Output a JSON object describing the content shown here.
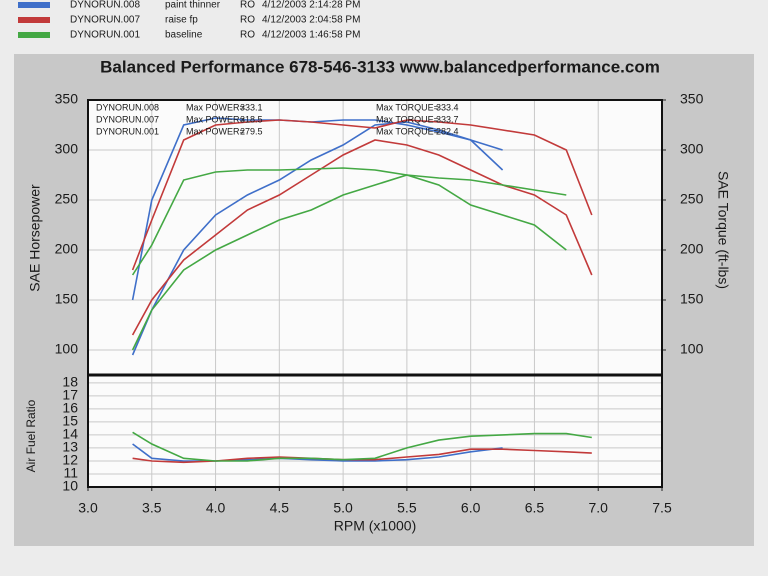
{
  "header": {
    "runs": [
      {
        "name": "DYNORUN.008",
        "desc": "paint thinner",
        "code": "RO",
        "date": "4/12/2003 2:14:28 PM",
        "color": "#3f6fc9"
      },
      {
        "name": "DYNORUN.007",
        "desc": "raise fp",
        "code": "RO",
        "date": "4/12/2003 2:04:58 PM",
        "color": "#c23a3a"
      },
      {
        "name": "DYNORUN.001",
        "desc": "baseline",
        "code": "RO",
        "date": "4/12/2003 1:46:58 PM",
        "color": "#44a844"
      }
    ]
  },
  "chart_data": [
    {
      "type": "line",
      "title": "Balanced Performance 678-546-3133 www.balancedperformance.com",
      "ylabel": "SAE Horsepower",
      "y2label": "SAE Torque (ft-lbs)",
      "power_label": "Max POWER=",
      "torque_label": "Max TORQUE=",
      "runs": [
        {
          "name": "DYNORUN.008",
          "color": "#3f6fc9",
          "max_power": 333.1,
          "max_torque": 333.4
        },
        {
          "name": "DYNORUN.007",
          "color": "#c23a3a",
          "max_power": 318.5,
          "max_torque": 333.7
        },
        {
          "name": "DYNORUN.001",
          "color": "#44a844",
          "max_power": 279.5,
          "max_torque": 282.4
        }
      ],
      "x": [
        3.35,
        3.5,
        3.75,
        4.0,
        4.25,
        4.5,
        4.75,
        5.0,
        5.25,
        5.5,
        5.75,
        6.0,
        6.25,
        6.5,
        6.75,
        6.95
      ],
      "xlim": [
        3,
        7.5
      ],
      "ylim": [
        75,
        350
      ],
      "yticks": [
        100,
        150,
        200,
        250,
        300,
        350
      ],
      "y2lim": [
        75,
        350
      ],
      "y2ticks": [
        100,
        150,
        200,
        250,
        300,
        350
      ],
      "grid": true,
      "series": [
        {
          "color": "#3f6fc9",
          "values": [
            95,
            140,
            200,
            235,
            255,
            270,
            290,
            305,
            325,
            328,
            320,
            310,
            280,
            null,
            null,
            null
          ]
        },
        {
          "color": "#3f6fc9",
          "axis": "y2",
          "values": [
            150,
            250,
            325,
            332,
            330,
            330,
            328,
            330,
            330,
            325,
            318,
            310,
            300,
            null,
            null,
            null
          ]
        },
        {
          "color": "#c23a3a",
          "values": [
            115,
            150,
            190,
            215,
            240,
            255,
            275,
            295,
            310,
            305,
            295,
            280,
            265,
            255,
            235,
            175
          ]
        },
        {
          "color": "#c23a3a",
          "axis": "y2",
          "values": [
            180,
            230,
            310,
            325,
            328,
            330,
            328,
            325,
            322,
            330,
            328,
            325,
            320,
            315,
            300,
            235
          ]
        },
        {
          "color": "#44a844",
          "values": [
            100,
            140,
            180,
            200,
            215,
            230,
            240,
            255,
            265,
            275,
            265,
            245,
            235,
            225,
            200,
            null
          ]
        },
        {
          "color": "#44a844",
          "axis": "y2",
          "values": [
            175,
            205,
            270,
            278,
            280,
            280,
            281,
            282,
            280,
            275,
            272,
            270,
            265,
            260,
            255,
            null
          ]
        }
      ]
    },
    {
      "type": "line",
      "ylabel": "Air Fuel Ratio",
      "xlabel": "RPM (x1000)",
      "x": [
        3.35,
        3.5,
        3.75,
        4.0,
        4.25,
        4.5,
        4.75,
        5.0,
        5.25,
        5.5,
        5.75,
        6.0,
        6.25,
        6.5,
        6.75,
        6.95
      ],
      "xlim": [
        3,
        7.5
      ],
      "xticks": [
        {
          "value": 3,
          "label": "3.0"
        },
        3.5,
        {
          "value": 4,
          "label": "4.0"
        },
        4.5,
        {
          "value": 5,
          "label": "5.0"
        },
        5.5,
        {
          "value": 6,
          "label": "6.0"
        },
        6.5,
        {
          "value": 7,
          "label": "7.0"
        },
        7.5
      ],
      "ylim": [
        10,
        18.6
      ],
      "yticks": [
        10,
        11,
        12,
        13,
        14,
        15,
        16,
        17,
        18
      ],
      "grid": true,
      "series": [
        {
          "color": "#3f6fc9",
          "values": [
            13.3,
            12.2,
            12.0,
            12.0,
            12.1,
            12.2,
            12.1,
            12.0,
            12.0,
            12.1,
            12.3,
            12.7,
            13.0,
            null,
            null,
            null
          ]
        },
        {
          "color": "#c23a3a",
          "values": [
            12.2,
            12.0,
            11.9,
            12.0,
            12.2,
            12.3,
            12.2,
            12.1,
            12.1,
            12.3,
            12.5,
            12.9,
            12.9,
            12.8,
            12.7,
            12.6
          ]
        },
        {
          "color": "#44a844",
          "values": [
            14.2,
            13.3,
            12.2,
            12.0,
            12.0,
            12.2,
            12.2,
            12.1,
            12.2,
            13.0,
            13.6,
            13.9,
            14.0,
            14.1,
            14.1,
            13.8
          ]
        }
      ]
    }
  ]
}
